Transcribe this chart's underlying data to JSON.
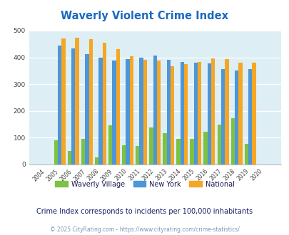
{
  "title": "Waverly Violent Crime Index",
  "years": [
    2004,
    2005,
    2006,
    2007,
    2008,
    2009,
    2010,
    2011,
    2012,
    2013,
    2014,
    2015,
    2016,
    2017,
    2018,
    2019,
    2020
  ],
  "waverly_village": [
    0,
    90,
    50,
    95,
    27,
    145,
    73,
    70,
    138,
    118,
    97,
    97,
    122,
    148,
    173,
    78,
    0
  ],
  "new_york": [
    0,
    445,
    433,
    413,
    400,
    387,
    393,
    400,
    406,
    391,
    384,
    380,
    377,
    356,
    350,
    356,
    0
  ],
  "national": [
    0,
    470,
    473,
    467,
    455,
    431,
    405,
    390,
    387,
    367,
    376,
    383,
    397,
    394,
    380,
    380,
    0
  ],
  "waverly_color": "#7dc241",
  "newyork_color": "#4d96d9",
  "national_color": "#f5a623",
  "plot_bg": "#ddeef5",
  "ylim": [
    0,
    500
  ],
  "yticks": [
    0,
    100,
    200,
    300,
    400,
    500
  ],
  "subtitle": "Crime Index corresponds to incidents per 100,000 inhabitants",
  "footer": "© 2025 CityRating.com - https://www.cityrating.com/crime-statistics/",
  "title_color": "#1a6abf",
  "subtitle_color": "#1a1a6a",
  "footer_color": "#7799bb",
  "legend_labels": [
    "Waverly Village",
    "New York",
    "National"
  ]
}
